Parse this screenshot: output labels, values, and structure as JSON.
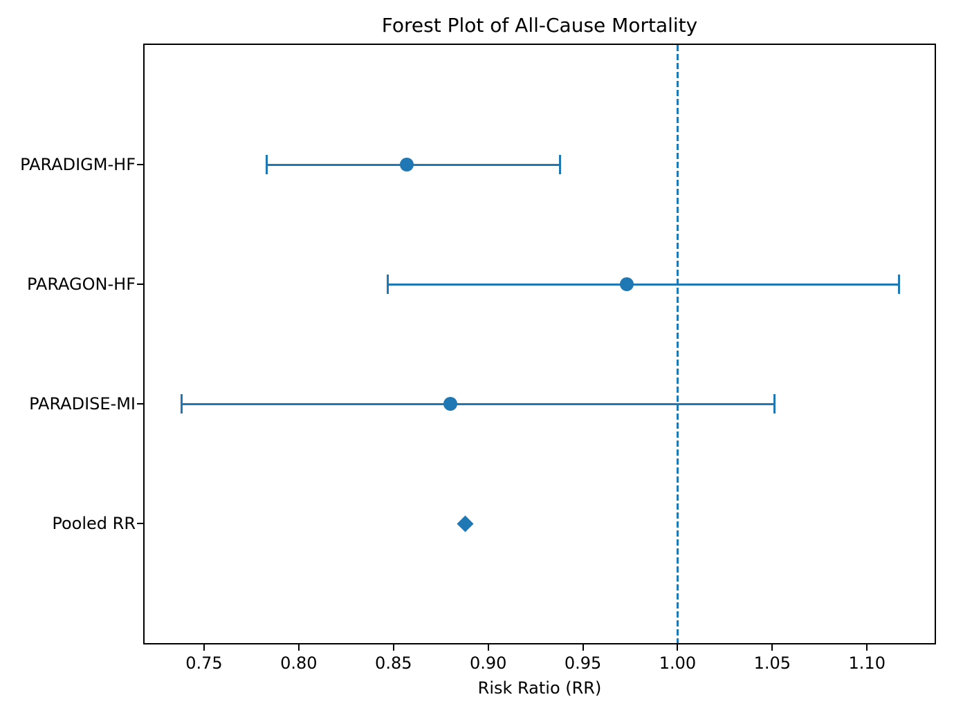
{
  "chart_data": {
    "type": "scatter",
    "subtype": "forest-plot",
    "title": "Forest Plot of All-Cause Mortality",
    "xlabel": "Risk Ratio (RR)",
    "ylabel": "",
    "grid": false,
    "legend": null,
    "xlim": [
      0.7186,
      1.1357
    ],
    "ylim": [
      0,
      5
    ],
    "x_ticks": [
      {
        "v": 0.75,
        "label": "0.75"
      },
      {
        "v": 0.8,
        "label": "0.80"
      },
      {
        "v": 0.85,
        "label": "0.85"
      },
      {
        "v": 0.9,
        "label": "0.90"
      },
      {
        "v": 0.95,
        "label": "0.95"
      },
      {
        "v": 1.0,
        "label": "1.00"
      },
      {
        "v": 1.05,
        "label": "1.05"
      },
      {
        "v": 1.1,
        "label": "1.10"
      }
    ],
    "reference_line": {
      "x": 1.0,
      "style": "dashed"
    },
    "rows": [
      {
        "label": "PARADIGM-HF",
        "y": 4,
        "rr": 0.857,
        "ci_low": 0.783,
        "ci_high": 0.938,
        "marker": "circle"
      },
      {
        "label": "PARAGON-HF",
        "y": 3,
        "rr": 0.973,
        "ci_low": 0.847,
        "ci_high": 1.117,
        "marker": "circle"
      },
      {
        "label": "PARADISE-MI",
        "y": 2,
        "rr": 0.88,
        "ci_low": 0.738,
        "ci_high": 1.051,
        "marker": "circle"
      },
      {
        "label": "Pooled RR",
        "y": 1,
        "rr": 0.888,
        "ci_low": null,
        "ci_high": null,
        "marker": "diamond"
      }
    ],
    "colors": {
      "series": "#1f77b4",
      "reference_line": "#1f77b4",
      "spine": "#000000",
      "text": "#000000",
      "background": "#ffffff"
    }
  }
}
